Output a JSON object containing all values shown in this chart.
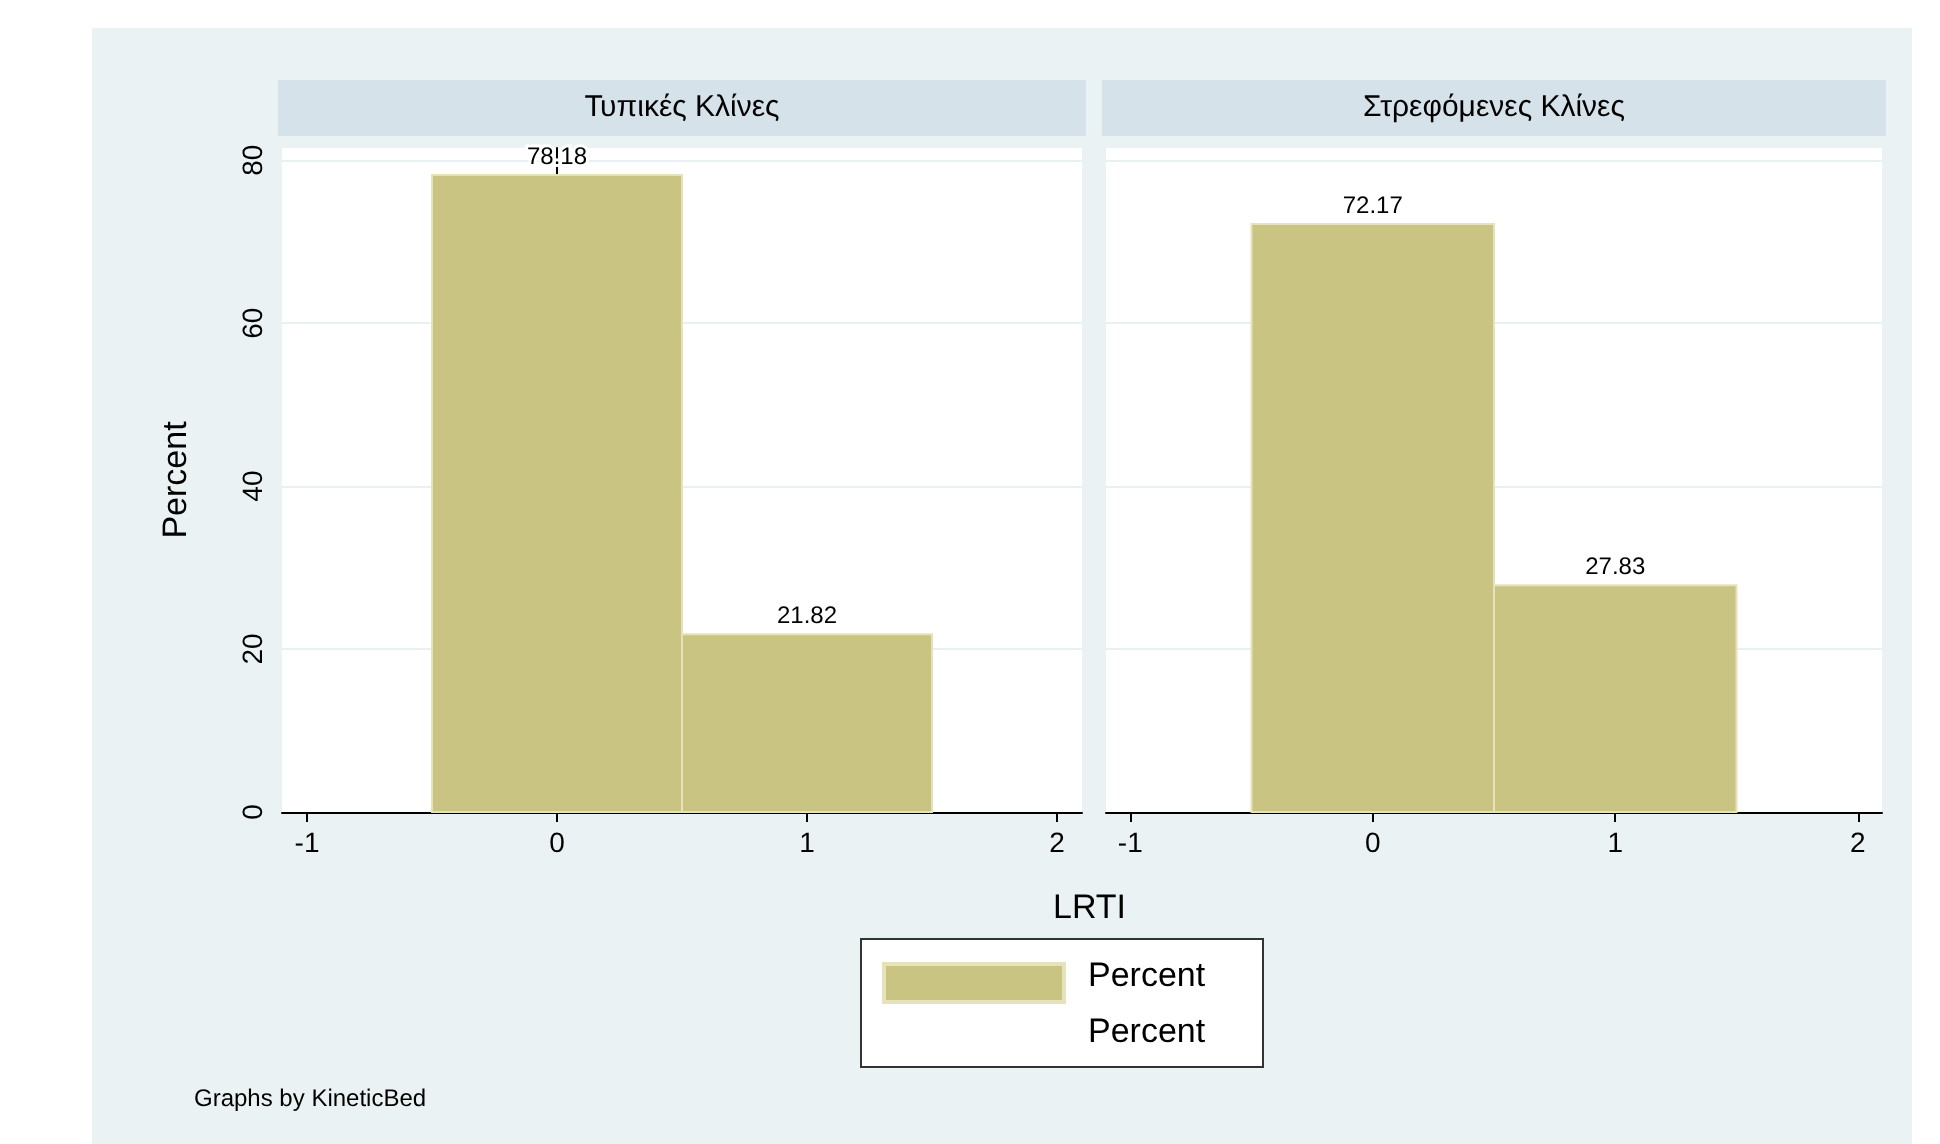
{
  "chart_data": [
    {
      "type": "histogram",
      "title": "Τυπικές Κλίνες",
      "xlabel": "LRTI",
      "ylabel": "Percent",
      "bins": [
        -0.5,
        0.5,
        1.5
      ],
      "xlim": [
        -1.1,
        2.1
      ],
      "xticks": [
        -1,
        0,
        1,
        2
      ],
      "ylim": [
        0,
        81.5
      ],
      "yticks": [
        0,
        20,
        40,
        60,
        80
      ],
      "grid": "y",
      "legend": "bottom",
      "data_labels": true,
      "annotations": [
        "Percent",
        "Graphs by KineticBed"
      ],
      "series": [
        {
          "name": "Percent",
          "color": "#cac482",
          "values": [
            78.18,
            21.82
          ]
        }
      ]
    },
    {
      "type": "histogram",
      "title": "Στρεφόμενες Κλίνες",
      "bins": [
        -0.5,
        0.5,
        1.5
      ],
      "xlim": [
        -1.1,
        2.1
      ],
      "xticks": [
        -1,
        0,
        1,
        2
      ],
      "ylim": [
        0,
        81.5
      ],
      "yticks": [
        0,
        20,
        40,
        60,
        80
      ],
      "grid": "y",
      "tick_labels": "x",
      "data_labels": true,
      "series": [
        {
          "color": "#cac482",
          "values": [
            72.17,
            27.83
          ]
        }
      ]
    }
  ]
}
